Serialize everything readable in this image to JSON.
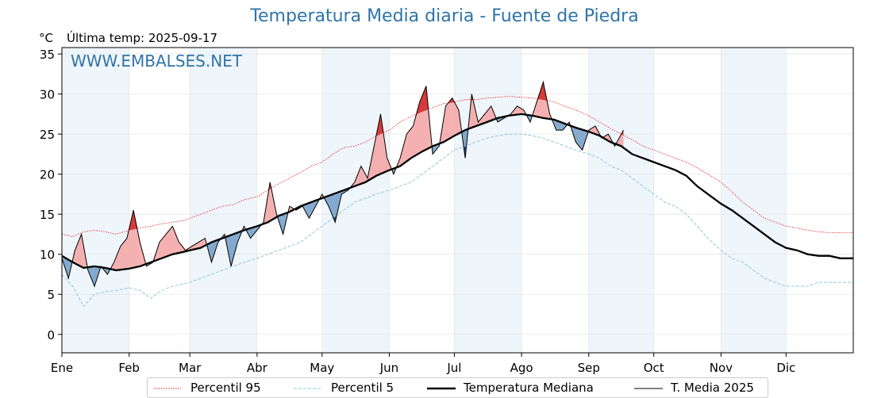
{
  "header": {
    "title": "Temperatura Media diaria - Fuente de Piedra",
    "unit": "°C",
    "last_temp": "Última temp: 2025-09-17",
    "watermark": "WWW.EMBALSES.NET"
  },
  "colors": {
    "title": "#2f74a8",
    "p95": "#e41a1c",
    "p5": "#8fc9dc",
    "median": "#000000",
    "current": "#000000",
    "fill_above": "#f4a9a8",
    "fill_above_strong": "#d83a3a",
    "fill_below": "#5f8fbf",
    "fill_below_strong": "#1f4f8a",
    "band": "#eef5fb"
  },
  "chart_data": {
    "type": "line",
    "title": "Temperatura Media diaria - Fuente de Piedra",
    "ylabel": "°C",
    "xlabel": "",
    "ylim": [
      -2.3,
      35.8
    ],
    "xlim": [
      1,
      366
    ],
    "y_ticks": [
      0,
      5,
      10,
      15,
      20,
      25,
      30,
      35
    ],
    "x_ticks": [
      {
        "label": "Ene",
        "day": 1
      },
      {
        "label": "Feb",
        "day": 32
      },
      {
        "label": "Mar",
        "day": 60
      },
      {
        "label": "Abr",
        "day": 91
      },
      {
        "label": "May",
        "day": 121
      },
      {
        "label": "Jun",
        "day": 152
      },
      {
        "label": "Jul",
        "day": 182
      },
      {
        "label": "Ago",
        "day": 213
      },
      {
        "label": "Sep",
        "day": 244
      },
      {
        "label": "Oct",
        "day": 274
      },
      {
        "label": "Nov",
        "day": 305
      },
      {
        "label": "Dic",
        "day": 335
      }
    ],
    "shaded_month_bands": [
      [
        1,
        32
      ],
      [
        60,
        91
      ],
      [
        121,
        152
      ],
      [
        182,
        213
      ],
      [
        244,
        274
      ],
      [
        305,
        335
      ]
    ],
    "grid": true,
    "legend_position": "bottom",
    "series": [
      {
        "name": "Percentil 95",
        "style": "dotted-red",
        "x": [
          1,
          6,
          11,
          16,
          21,
          26,
          32,
          37,
          42,
          47,
          52,
          57,
          60,
          65,
          70,
          75,
          80,
          85,
          91,
          96,
          101,
          106,
          111,
          116,
          121,
          126,
          131,
          136,
          141,
          146,
          152,
          157,
          162,
          167,
          172,
          177,
          182,
          187,
          192,
          197,
          202,
          207,
          213,
          218,
          223,
          228,
          233,
          238,
          244,
          249,
          254,
          259,
          264,
          269,
          274,
          279,
          284,
          289,
          294,
          299,
          305,
          310,
          315,
          320,
          325,
          330,
          335,
          340,
          345,
          350,
          355,
          360,
          366
        ],
        "y": [
          12.5,
          12.2,
          12.8,
          13.0,
          12.8,
          12.5,
          13.0,
          13.3,
          13.5,
          13.8,
          14.0,
          14.2,
          14.5,
          15.0,
          15.5,
          16.0,
          16.2,
          16.8,
          17.2,
          18.0,
          18.8,
          19.5,
          20.2,
          21.0,
          21.5,
          22.5,
          23.3,
          23.5,
          24.0,
          24.8,
          25.5,
          26.5,
          27.2,
          27.8,
          28.3,
          28.8,
          29.0,
          29.3,
          29.3,
          29.5,
          29.6,
          29.7,
          29.6,
          29.5,
          29.3,
          29.0,
          28.5,
          28.0,
          27.3,
          26.5,
          25.7,
          25.0,
          24.3,
          23.5,
          23.0,
          22.5,
          22.0,
          21.5,
          20.8,
          20.0,
          19.0,
          17.8,
          16.5,
          15.5,
          14.5,
          14.0,
          13.5,
          13.3,
          13.0,
          12.8,
          12.7,
          12.7,
          12.7
        ]
      },
      {
        "name": "Percentil 5",
        "style": "dashed-lightblue",
        "x": [
          1,
          6,
          11,
          16,
          21,
          26,
          32,
          37,
          42,
          47,
          52,
          57,
          60,
          65,
          70,
          75,
          80,
          85,
          91,
          96,
          101,
          106,
          111,
          116,
          121,
          126,
          131,
          136,
          141,
          146,
          152,
          157,
          162,
          167,
          172,
          177,
          182,
          187,
          192,
          197,
          202,
          207,
          213,
          218,
          223,
          228,
          233,
          238,
          244,
          249,
          254,
          259,
          264,
          269,
          274,
          279,
          284,
          289,
          294,
          299,
          305,
          310,
          315,
          320,
          325,
          330,
          335,
          340,
          345,
          350,
          355,
          360,
          366
        ],
        "y": [
          7.5,
          6.0,
          3.5,
          5.0,
          5.3,
          5.5,
          5.8,
          5.5,
          4.5,
          5.5,
          6.0,
          6.3,
          6.5,
          7.0,
          7.5,
          8.0,
          8.5,
          9.0,
          9.5,
          10.0,
          10.5,
          11.0,
          11.5,
          12.5,
          13.5,
          14.5,
          15.5,
          16.5,
          17.0,
          17.5,
          18.0,
          18.5,
          19.0,
          20.0,
          21.0,
          22.0,
          23.0,
          23.5,
          24.0,
          24.5,
          24.8,
          25.0,
          25.0,
          24.8,
          24.5,
          24.0,
          23.5,
          23.0,
          22.5,
          22.0,
          21.0,
          20.5,
          19.5,
          18.5,
          17.5,
          16.5,
          16.0,
          15.0,
          13.5,
          12.0,
          10.5,
          9.5,
          9.0,
          8.0,
          7.0,
          6.5,
          6.0,
          6.0,
          6.0,
          6.5,
          6.5,
          6.5,
          6.5
        ]
      },
      {
        "name": "Temperatura Mediana",
        "style": "solid-thick-black",
        "x": [
          1,
          6,
          11,
          16,
          21,
          26,
          32,
          37,
          42,
          47,
          52,
          57,
          60,
          65,
          70,
          75,
          80,
          85,
          91,
          96,
          101,
          106,
          111,
          116,
          121,
          126,
          131,
          136,
          141,
          146,
          152,
          157,
          162,
          167,
          172,
          177,
          182,
          187,
          192,
          197,
          202,
          207,
          213,
          218,
          223,
          228,
          233,
          238,
          244,
          249,
          254,
          259,
          264,
          269,
          274,
          279,
          284,
          289,
          294,
          299,
          305,
          310,
          315,
          320,
          325,
          330,
          335,
          340,
          345,
          350,
          355,
          360,
          366
        ],
        "y": [
          9.8,
          9.0,
          8.3,
          8.5,
          8.3,
          8.0,
          8.2,
          8.5,
          9.0,
          9.5,
          10.0,
          10.3,
          10.5,
          10.8,
          11.5,
          12.0,
          12.5,
          13.0,
          13.5,
          14.0,
          14.8,
          15.3,
          16.0,
          16.5,
          17.0,
          17.5,
          18.0,
          18.5,
          19.0,
          19.8,
          20.5,
          21.0,
          22.0,
          22.8,
          23.5,
          24.0,
          24.8,
          25.5,
          26.0,
          26.5,
          27.0,
          27.3,
          27.5,
          27.3,
          27.0,
          26.8,
          26.3,
          25.8,
          25.3,
          24.8,
          24.0,
          23.5,
          22.5,
          22.0,
          21.5,
          21.0,
          20.5,
          19.8,
          18.5,
          17.5,
          16.3,
          15.5,
          14.5,
          13.5,
          12.5,
          11.5,
          10.8,
          10.5,
          10.0,
          9.8,
          9.8,
          9.5,
          9.5
        ]
      },
      {
        "name": "T. Media 2025",
        "style": "solid-thin-black",
        "x": [
          1,
          4,
          7,
          10,
          13,
          16,
          19,
          22,
          25,
          28,
          31,
          34,
          37,
          40,
          43,
          46,
          49,
          52,
          55,
          58,
          61,
          64,
          67,
          70,
          73,
          76,
          79,
          82,
          85,
          88,
          91,
          94,
          97,
          100,
          103,
          106,
          109,
          112,
          115,
          118,
          121,
          124,
          127,
          130,
          133,
          136,
          139,
          142,
          145,
          148,
          151,
          154,
          157,
          160,
          163,
          166,
          169,
          172,
          175,
          178,
          181,
          184,
          187,
          190,
          193,
          196,
          199,
          202,
          205,
          208,
          211,
          214,
          217,
          220,
          223,
          226,
          229,
          232,
          235,
          238,
          241,
          244,
          247,
          250,
          253,
          256,
          259,
          260
        ],
        "y": [
          9.5,
          7.0,
          10.5,
          12.5,
          8.0,
          6.0,
          8.5,
          7.5,
          9.0,
          11.0,
          12.0,
          15.5,
          11.5,
          8.5,
          9.0,
          11.5,
          12.5,
          13.5,
          11.5,
          10.5,
          11.0,
          11.5,
          12.0,
          9.0,
          11.5,
          12.5,
          8.5,
          11.5,
          13.5,
          12.0,
          13.0,
          14.0,
          19.0,
          15.0,
          12.5,
          16.0,
          15.5,
          16.0,
          14.5,
          16.0,
          17.5,
          16.0,
          14.0,
          17.5,
          18.0,
          19.0,
          21.0,
          19.5,
          23.5,
          27.5,
          22.0,
          20.0,
          22.0,
          25.0,
          26.0,
          29.0,
          31.0,
          22.5,
          23.5,
          28.5,
          29.5,
          28.0,
          22.0,
          30.0,
          26.5,
          27.5,
          28.5,
          26.5,
          27.0,
          27.5,
          28.5,
          28.0,
          26.5,
          29.0,
          31.5,
          27.5,
          25.5,
          25.5,
          26.5,
          24.0,
          23.0,
          25.5,
          26.0,
          24.5,
          25.0,
          23.5,
          25.0,
          25.5
        ]
      }
    ]
  },
  "legend": {
    "items": [
      "Percentil 95",
      "Percentil 5",
      "Temperatura Mediana",
      "T. Media 2025"
    ]
  }
}
